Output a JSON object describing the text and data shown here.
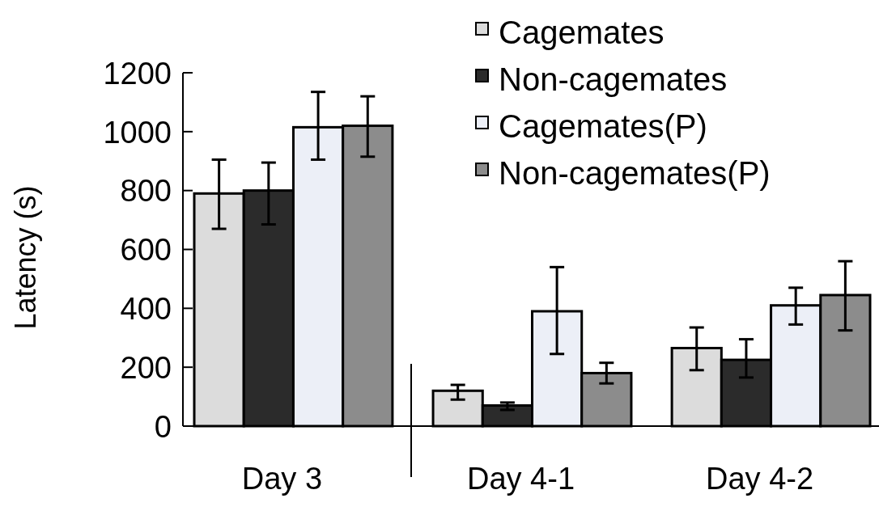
{
  "chart_data": {
    "type": "bar",
    "ylabel": "Latency (s)",
    "categories": [
      "Day 3",
      "Day 4-1",
      "Day 4-2"
    ],
    "series": [
      {
        "name": "Cagemates",
        "color": "#dcdcdc",
        "values": [
          790,
          120,
          265
        ],
        "errors": [
          [
            670,
            905
          ],
          [
            90,
            140
          ],
          [
            190,
            335
          ]
        ]
      },
      {
        "name": "Non-cagemates",
        "color": "#2b2b2b",
        "values": [
          800,
          70,
          225
        ],
        "errors": [
          [
            685,
            895
          ],
          [
            55,
            80
          ],
          [
            165,
            295
          ]
        ]
      },
      {
        "name": "Cagemates(P)",
        "color": "#eceff7",
        "values": [
          1015,
          390,
          410
        ],
        "errors": [
          [
            905,
            1135
          ],
          [
            245,
            540
          ],
          [
            345,
            470
          ]
        ]
      },
      {
        "name": "Non-cagemates(P)",
        "color": "#8c8c8c",
        "values": [
          1020,
          180,
          445
        ],
        "errors": [
          [
            915,
            1120
          ],
          [
            145,
            215
          ],
          [
            325,
            560
          ]
        ]
      }
    ],
    "ylim": [
      0,
      1200
    ],
    "yticks": [
      0,
      200,
      400,
      600,
      800,
      1000,
      1200
    ],
    "legend": "top right",
    "grid": false
  }
}
